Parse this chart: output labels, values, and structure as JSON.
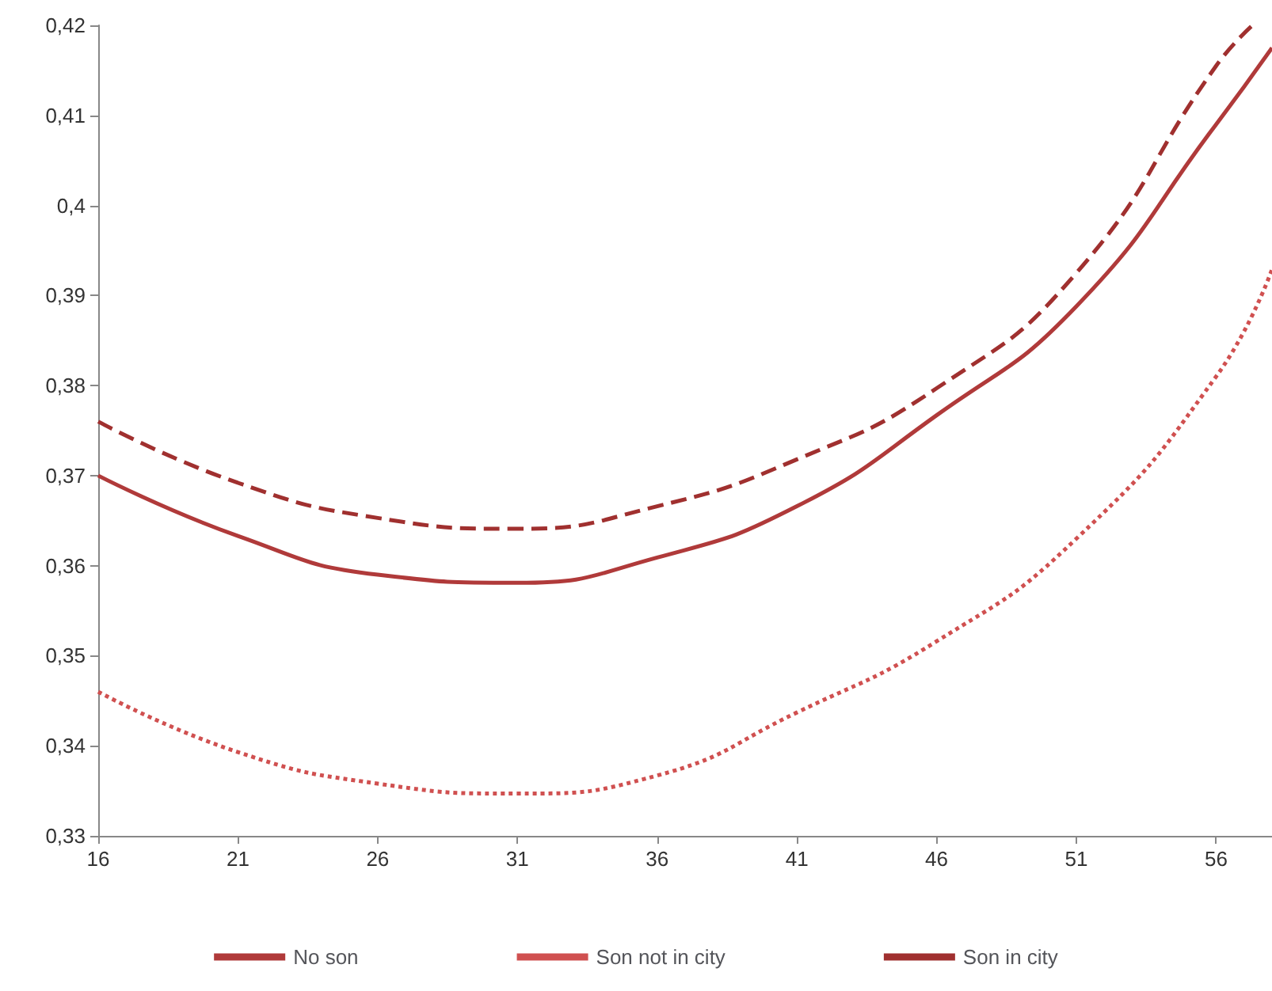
{
  "chart_data": {
    "type": "line",
    "marker": "none",
    "grid": false,
    "legend": "bottom",
    "xlim": [
      16,
      58
    ],
    "xticks": [
      16,
      21,
      26,
      31,
      36,
      41,
      46,
      51,
      56
    ],
    "ylim": [
      0.33,
      0.42
    ],
    "yticks": [
      {
        "value": 0.33,
        "label": "0,33"
      },
      {
        "value": 0.34,
        "label": "0,34"
      },
      {
        "value": 0.35,
        "label": "0,35"
      },
      {
        "value": 0.36,
        "label": "0,36"
      },
      {
        "value": 0.37,
        "label": "0,37"
      },
      {
        "value": 0.38,
        "label": "0,38"
      },
      {
        "value": 0.39,
        "label": "0,39"
      },
      {
        "value": 0.4,
        "label": "0,4"
      },
      {
        "value": 0.41,
        "label": "0,41"
      },
      {
        "value": 0.42,
        "label": "0,42"
      }
    ],
    "series": [
      {
        "name": "No son",
        "color": "#b03a3a",
        "line_style": "solid",
        "x": [
          16,
          21,
          26,
          31,
          36,
          41,
          46,
          51,
          56,
          58
        ],
        "values": [
          0.37,
          0.3633,
          0.359,
          0.3581,
          0.3609,
          0.3666,
          0.3767,
          0.3888,
          0.409,
          0.4175
        ]
      },
      {
        "name": "Son not in city",
        "color": "#d05050",
        "line_style": "dotted",
        "x": [
          16,
          21,
          26,
          31,
          36,
          41,
          46,
          51,
          56,
          58
        ],
        "values": [
          0.346,
          0.3393,
          0.3358,
          0.3347,
          0.3367,
          0.3437,
          0.3516,
          0.363,
          0.381,
          0.3929
        ]
      },
      {
        "name": "Son in city",
        "color": "#a0302f",
        "line_style": "dashed",
        "x": [
          16,
          21,
          26,
          31,
          36,
          41,
          46,
          51,
          56,
          57.3
        ],
        "values": [
          0.376,
          0.3692,
          0.3653,
          0.3641,
          0.3666,
          0.3718,
          0.3797,
          0.3925,
          0.4155,
          0.42
        ]
      }
    ]
  }
}
